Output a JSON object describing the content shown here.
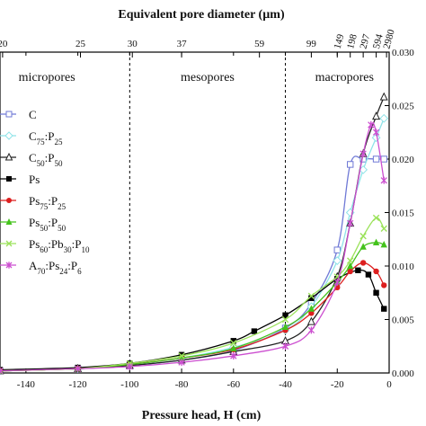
{
  "chart_data": {
    "type": "line",
    "xlabel": "Pressure head, H (cm)",
    "top_xlabel": "Equivalent pore diameter (µm)",
    "xlim": [
      -150,
      0
    ],
    "ylim": [
      0,
      0.03
    ],
    "x_ticks": [
      "-140",
      "-120",
      "-100",
      "-80",
      "-60",
      "-40",
      "-20",
      "0"
    ],
    "y_ticks": [
      "0.000",
      "0.005",
      "0.010",
      "0.015",
      "0.020",
      "0.025",
      "0.030"
    ],
    "top_ticks": [
      {
        "h": -149,
        "label": "20"
      },
      {
        "h": -119,
        "label": "25"
      },
      {
        "h": -99,
        "label": "30"
      },
      {
        "h": -80,
        "label": "37"
      },
      {
        "h": -50,
        "label": "59"
      },
      {
        "h": -30,
        "label": "99"
      },
      {
        "h": -20,
        "label": "149"
      },
      {
        "h": -15,
        "label": "198"
      },
      {
        "h": -10,
        "label": "297"
      },
      {
        "h": -5,
        "label": "594"
      },
      {
        "h": -1,
        "label": "2980"
      }
    ],
    "dividers": [
      -100,
      -40
    ],
    "regions": [
      "micropores",
      "mesopores",
      "macropores"
    ],
    "legend_position": "left",
    "series": [
      {
        "name": "C",
        "label": {
          "base": "C",
          "parts": []
        },
        "color": "#6f79d6",
        "marker": "square-open",
        "x": [
          -150,
          -120,
          -100,
          -80,
          -60,
          -40,
          -30,
          -20,
          -15,
          -10,
          -5,
          -2
        ],
        "y": [
          0.0002,
          0.0004,
          0.0007,
          0.0012,
          0.0021,
          0.0042,
          0.0065,
          0.0115,
          0.0195,
          0.02,
          0.02,
          0.02
        ]
      },
      {
        "name": "C75:P25",
        "label": {
          "base": "C",
          "parts": [
            [
              "75",
              ":P"
            ],
            [
              "25",
              ""
            ]
          ]
        },
        "color": "#8fe3e8",
        "marker": "diamond-open",
        "x": [
          -150,
          -120,
          -100,
          -80,
          -60,
          -40,
          -30,
          -20,
          -15,
          -10,
          -5,
          -2
        ],
        "y": [
          0.0002,
          0.0004,
          0.0008,
          0.0014,
          0.0024,
          0.004,
          0.0062,
          0.0105,
          0.015,
          0.019,
          0.022,
          0.0238
        ]
      },
      {
        "name": "C50:P50",
        "label": {
          "base": "C",
          "parts": [
            [
              "50",
              ":P"
            ],
            [
              "50",
              ""
            ]
          ]
        },
        "color": "#222222",
        "marker": "triangle-open",
        "x": [
          -150,
          -120,
          -100,
          -80,
          -60,
          -40,
          -30,
          -20,
          -15,
          -10,
          -5,
          -2
        ],
        "y": [
          0.0002,
          0.0004,
          0.0007,
          0.0012,
          0.002,
          0.003,
          0.0048,
          0.009,
          0.014,
          0.0205,
          0.024,
          0.0258
        ]
      },
      {
        "name": "Ps",
        "label": {
          "base": "Ps",
          "parts": []
        },
        "color": "#000000",
        "marker": "square-filled",
        "x": [
          -150,
          -120,
          -100,
          -80,
          -60,
          -52,
          -40,
          -30,
          -20,
          -12,
          -8,
          -5,
          -2
        ],
        "y": [
          0.0003,
          0.0005,
          0.0009,
          0.0017,
          0.003,
          0.0039,
          0.0054,
          0.007,
          0.0088,
          0.0096,
          0.0092,
          0.0075,
          0.006
        ]
      },
      {
        "name": "Ps75:P25",
        "label": {
          "base": "Ps",
          "parts": [
            [
              "75",
              ":P"
            ],
            [
              "25",
              ""
            ]
          ]
        },
        "color": "#dd1f1f",
        "marker": "circle-filled",
        "x": [
          -150,
          -120,
          -100,
          -80,
          -60,
          -40,
          -30,
          -20,
          -15,
          -10,
          -5,
          -2
        ],
        "y": [
          0.0002,
          0.0004,
          0.0008,
          0.0014,
          0.0022,
          0.004,
          0.0056,
          0.008,
          0.0095,
          0.0103,
          0.0095,
          0.0082
        ]
      },
      {
        "name": "Ps50:P50",
        "label": {
          "base": "Ps",
          "parts": [
            [
              "50",
              ":P"
            ],
            [
              "50",
              ""
            ]
          ]
        },
        "color": "#44c21c",
        "marker": "triangle-filled",
        "x": [
          -150,
          -120,
          -100,
          -80,
          -60,
          -40,
          -30,
          -20,
          -15,
          -10,
          -5,
          -2
        ],
        "y": [
          0.0002,
          0.0004,
          0.0008,
          0.0014,
          0.0023,
          0.0043,
          0.006,
          0.0085,
          0.01,
          0.0118,
          0.0122,
          0.012
        ]
      },
      {
        "name": "Ps60:Pb30:P10",
        "label": {
          "base": "Ps",
          "parts": [
            [
              "60",
              ":Pb"
            ],
            [
              "30",
              ":P"
            ],
            [
              "10",
              ""
            ]
          ]
        },
        "color": "#9be25a",
        "marker": "cross",
        "x": [
          -150,
          -120,
          -100,
          -80,
          -60,
          -40,
          -30,
          -20,
          -15,
          -10,
          -5,
          -2
        ],
        "y": [
          0.0002,
          0.0004,
          0.0009,
          0.0016,
          0.0028,
          0.005,
          0.0072,
          0.009,
          0.0105,
          0.0128,
          0.0145,
          0.0135
        ]
      },
      {
        "name": "A70:Ps24:P6",
        "label": {
          "base": "A",
          "parts": [
            [
              "70",
              ":Ps"
            ],
            [
              "24",
              ":P"
            ],
            [
              "6",
              ""
            ]
          ]
        },
        "color": "#cc4fd0",
        "marker": "star",
        "x": [
          -150,
          -120,
          -100,
          -80,
          -60,
          -40,
          -30,
          -20,
          -15,
          -10,
          -7,
          -5,
          -2
        ],
        "y": [
          0.0002,
          0.0004,
          0.0006,
          0.001,
          0.0016,
          0.0025,
          0.004,
          0.0085,
          0.014,
          0.0205,
          0.0232,
          0.0225,
          0.018
        ]
      }
    ]
  }
}
